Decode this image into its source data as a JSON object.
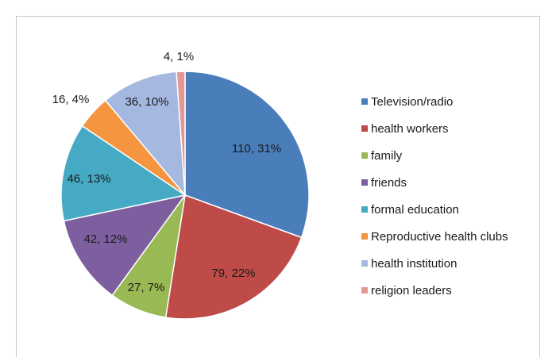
{
  "chart_data": {
    "type": "pie",
    "title": "",
    "legend_position": "right",
    "slices": [
      {
        "label": "Television/radio",
        "value": 110,
        "percent": 31,
        "data_label": "110, 31%",
        "color": "#4a7ebb"
      },
      {
        "label": "health workers",
        "value": 79,
        "percent": 22,
        "data_label": "79, 22%",
        "color": "#be4b48"
      },
      {
        "label": "family",
        "value": 27,
        "percent": 7,
        "data_label": "27, 7%",
        "color": "#98b954"
      },
      {
        "label": "friends",
        "value": 42,
        "percent": 12,
        "data_label": "42, 12%",
        "color": "#7d5fa0"
      },
      {
        "label": "formal education",
        "value": 46,
        "percent": 13,
        "data_label": "46, 13%",
        "color": "#46aac5"
      },
      {
        "label": "Reproductive health clubs",
        "value": 16,
        "percent": 4,
        "data_label": "16, 4%",
        "color": "#f59540"
      },
      {
        "label": "health institution",
        "value": 36,
        "percent": 10,
        "data_label": "36, 10%",
        "color": "#a5b8e0"
      },
      {
        "label": "religion leaders",
        "value": 4,
        "percent": 1,
        "data_label": "4, 1%",
        "color": "#e39896"
      }
    ]
  }
}
